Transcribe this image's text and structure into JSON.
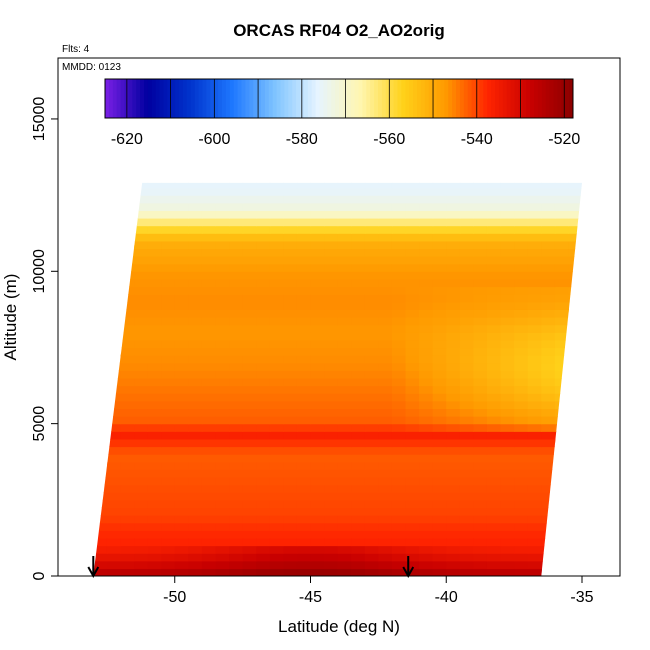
{
  "chart_data": {
    "type": "heatmap",
    "title": "ORCAS RF04 O2_AO2orig",
    "flights_label": "Flts: 4",
    "date_label": "MMDD: 0123",
    "xlabel": "Latitude (deg N)",
    "ylabel": "Altitude (m)",
    "xlim": [
      -54.3,
      -33.6
    ],
    "ylim": [
      0,
      17000
    ],
    "x_ticks": [
      -50,
      -45,
      -40,
      -35
    ],
    "x_tick_labels": [
      "-50",
      "-45",
      "-40",
      "-35"
    ],
    "y_ticks": [
      0,
      5000,
      10000,
      15000
    ],
    "y_tick_labels": [
      "0",
      "5000",
      "10000",
      "15000"
    ],
    "colorbar": {
      "range": [
        -625,
        -518
      ],
      "ticks": [
        -620,
        -600,
        -580,
        -560,
        -540,
        -520
      ],
      "tick_labels": [
        "-620",
        "-600",
        "-580",
        "-560",
        "-540",
        "-520"
      ],
      "divisions": [
        -620,
        -610,
        -600,
        -590,
        -580,
        -570,
        -560,
        -550,
        -540,
        -530,
        -520
      ],
      "colors": [
        "#7b1fe6",
        "#0000a0",
        "#0033cc",
        "#1e78ff",
        "#7fc4ff",
        "#e6f4ff",
        "#fff6b0",
        "#ffd21a",
        "#ff9a00",
        "#ff2400",
        "#c80000",
        "#8b0000"
      ]
    },
    "field_extent": {
      "altitude_max": 12900,
      "lat_south_at_bottom": -53.0,
      "lat_south_at_top": -51.2,
      "lat_north_at_bottom": -36.5,
      "lat_north_at_top": -35.0
    },
    "altitude_profile": [
      {
        "alt": 100,
        "value": -526
      },
      {
        "alt": 500,
        "value": -532
      },
      {
        "alt": 1000,
        "value": -537
      },
      {
        "alt": 1500,
        "value": -538
      },
      {
        "alt": 2000,
        "value": -540
      },
      {
        "alt": 3000,
        "value": -541
      },
      {
        "alt": 4000,
        "value": -542
      },
      {
        "alt": 4700,
        "value": -536
      },
      {
        "alt": 5000,
        "value": -542
      },
      {
        "alt": 6000,
        "value": -544
      },
      {
        "alt": 7000,
        "value": -546
      },
      {
        "alt": 8000,
        "value": -547
      },
      {
        "alt": 9000,
        "value": -546
      },
      {
        "alt": 10000,
        "value": -547
      },
      {
        "alt": 11000,
        "value": -551
      },
      {
        "alt": 11500,
        "value": -560
      },
      {
        "alt": 12000,
        "value": -572
      },
      {
        "alt": 12700,
        "value": -576
      }
    ],
    "sounding_markers_lat": [
      -53.0,
      -41.4
    ]
  }
}
